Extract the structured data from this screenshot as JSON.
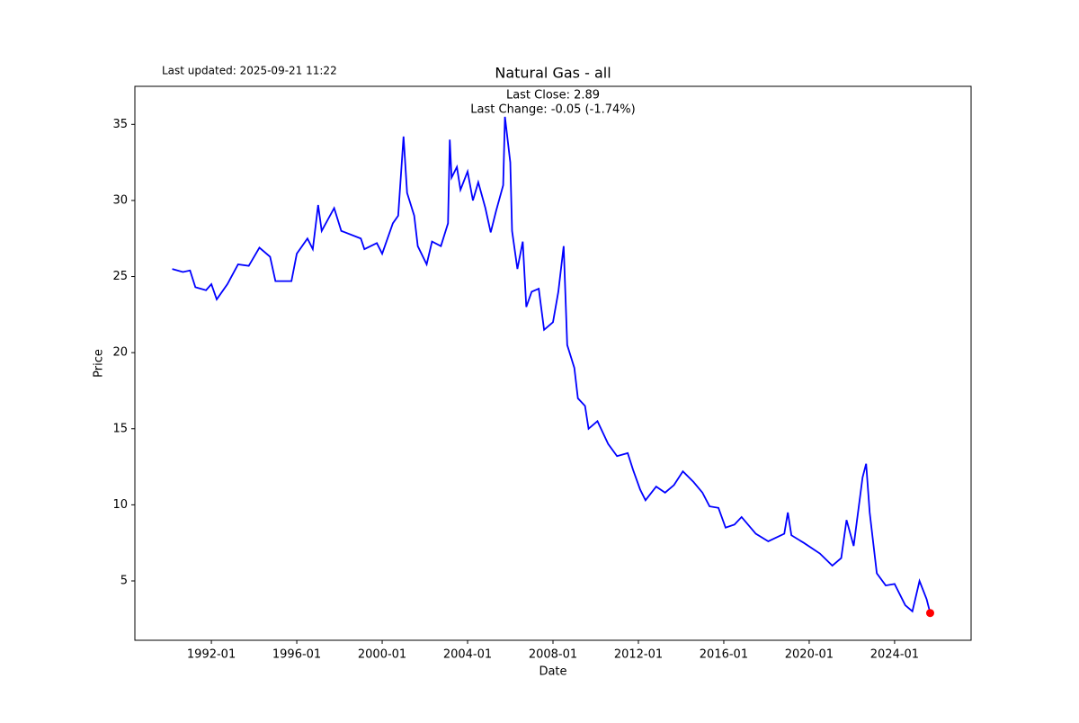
{
  "chart_data": {
    "type": "line",
    "title": "Natural Gas - all",
    "annotations": {
      "updated": "Last updated: 2025-09-21 11:22",
      "close": "Last Close: 2.89",
      "change": "Last Change: -0.05 (-1.74%)"
    },
    "x_label": "Date",
    "y_label": "Price",
    "x": [
      "1990-03",
      "1990-09",
      "1991-01",
      "1991-04",
      "1991-10",
      "1992-01",
      "1992-04",
      "1992-10",
      "1993-04",
      "1993-10",
      "1994-04",
      "1994-10",
      "1995-01",
      "1995-10",
      "1996-01",
      "1996-07",
      "1996-10",
      "1997-01",
      "1997-03",
      "1997-10",
      "1998-02",
      "1999-01",
      "1999-03",
      "1999-10",
      "2000-01",
      "2000-07",
      "2000-10",
      "2001-01",
      "2001-03",
      "2001-07",
      "2001-09",
      "2002-02",
      "2002-05",
      "2002-10",
      "2003-02",
      "2003-03",
      "2003-04",
      "2003-07",
      "2003-09",
      "2004-01",
      "2004-04",
      "2004-07",
      "2004-11",
      "2005-02",
      "2005-05",
      "2005-09",
      "2005-10",
      "2006-01",
      "2006-02",
      "2006-05",
      "2006-08",
      "2006-10",
      "2007-01",
      "2007-05",
      "2007-08",
      "2008-01",
      "2008-04",
      "2008-07",
      "2008-09",
      "2009-01",
      "2009-03",
      "2009-07",
      "2009-09",
      "2010-02",
      "2010-08",
      "2011-01",
      "2011-07",
      "2011-10",
      "2012-02",
      "2012-05",
      "2012-11",
      "2013-04",
      "2013-09",
      "2014-02",
      "2014-08",
      "2015-01",
      "2015-05",
      "2015-10",
      "2016-02",
      "2016-07",
      "2016-11",
      "2017-07",
      "2018-02",
      "2018-11",
      "2019-01",
      "2019-03",
      "2019-10",
      "2020-07",
      "2021-02",
      "2021-07",
      "2021-10",
      "2022-02",
      "2022-07",
      "2022-09",
      "2022-11",
      "2023-03",
      "2023-08",
      "2024-01",
      "2024-07",
      "2024-11",
      "2025-03",
      "2025-07",
      "2025-09"
    ],
    "series": [
      {
        "color": "#0000ff",
        "last_point_color": "#ff0000",
        "values": [
          25.5,
          25.3,
          25.4,
          24.3,
          24.1,
          24.5,
          23.5,
          24.5,
          25.8,
          25.7,
          26.9,
          26.3,
          24.7,
          24.7,
          26.5,
          27.5,
          26.8,
          29.7,
          28,
          29.5,
          28,
          27.5,
          26.8,
          27.2,
          26.5,
          28.5,
          29,
          34.2,
          30.5,
          29,
          27,
          25.8,
          27.3,
          27,
          28.5,
          34,
          31.5,
          32.2,
          30.7,
          31.9,
          30,
          31.2,
          29.5,
          27.9,
          29.3,
          31,
          35.5,
          32.5,
          28,
          25.5,
          27.3,
          23,
          24,
          24.2,
          21.5,
          22,
          24,
          27,
          20.5,
          19,
          17,
          16.5,
          15,
          15.5,
          14,
          13.2,
          13.4,
          12.3,
          11,
          10.3,
          11.2,
          10.8,
          11.3,
          12.2,
          11.5,
          10.8,
          9.9,
          9.8,
          8.5,
          8.7,
          9.2,
          8.1,
          7.6,
          8.1,
          9.5,
          8,
          7.5,
          6.8,
          6,
          6.5,
          9.0,
          7.3,
          11.8,
          12.7,
          9.5,
          5.5,
          4.7,
          4.8,
          3.4,
          3.0,
          5.0,
          3.8,
          2.89
        ]
      }
    ],
    "xlim": [
      "1988-06",
      "2027-08"
    ],
    "ylim": [
      1.1,
      37.5
    ],
    "xticks": [
      "1992-01",
      "1996-01",
      "2000-01",
      "2004-01",
      "2008-01",
      "2012-01",
      "2016-01",
      "2020-01",
      "2024-01"
    ],
    "yticks": [
      5,
      10,
      15,
      20,
      25,
      30,
      35
    ],
    "grid": false
  }
}
